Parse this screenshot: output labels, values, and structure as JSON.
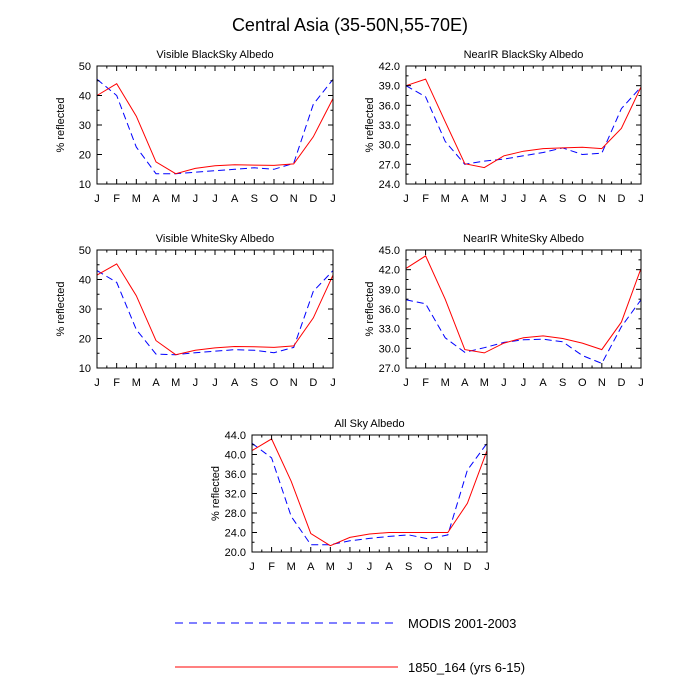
{
  "figure": {
    "title": "Central Asia (35-50N,55-70E)"
  },
  "legend": [
    {
      "label": "MODIS 2001-2003",
      "color": "#0000ff",
      "dashed": true
    },
    {
      "label": "1850_164 (yrs 6-15)",
      "color": "#ff0000",
      "dashed": false
    }
  ],
  "chart_data": [
    {
      "type": "line",
      "title": "Visible BlackSky Albedo",
      "ylabel": "% reflected",
      "xlabel": "",
      "categories": [
        "J",
        "F",
        "M",
        "A",
        "M",
        "J",
        "J",
        "A",
        "S",
        "O",
        "N",
        "D",
        "J"
      ],
      "ylim": [
        10,
        50
      ],
      "yticks": [
        "10",
        "20",
        "30",
        "40",
        "50"
      ],
      "grid": false,
      "series": [
        {
          "name": "MODIS 2001-2003",
          "color": "#0000ff",
          "dashed": true,
          "values": [
            45.5,
            40,
            22.5,
            13.5,
            13.5,
            14,
            14.5,
            15,
            15.5,
            15,
            17,
            37,
            45.5
          ]
        },
        {
          "name": "1850_164 (yrs 6-15)",
          "color": "#ff0000",
          "dashed": false,
          "values": [
            40,
            44,
            33,
            17.5,
            13.5,
            15.3,
            16.2,
            16.5,
            16.4,
            16.3,
            16.8,
            26,
            39
          ]
        }
      ]
    },
    {
      "type": "line",
      "title": "NearIR BlackSky Albedo",
      "ylabel": "% reflected",
      "xlabel": "",
      "categories": [
        "J",
        "F",
        "M",
        "A",
        "M",
        "J",
        "J",
        "A",
        "S",
        "O",
        "N",
        "D",
        "J"
      ],
      "ylim": [
        24,
        42
      ],
      "yticks": [
        "24.0",
        "27.0",
        "30.0",
        "33.0",
        "36.0",
        "39.0",
        "42.0"
      ],
      "grid": false,
      "series": [
        {
          "name": "MODIS 2001-2003",
          "color": "#0000ff",
          "dashed": true,
          "values": [
            39,
            37.3,
            30.5,
            27,
            27.5,
            27.8,
            28.3,
            28.8,
            29.5,
            28.5,
            28.7,
            35.5,
            38.8
          ]
        },
        {
          "name": "1850_164 (yrs 6-15)",
          "color": "#ff0000",
          "dashed": false,
          "values": [
            39,
            40,
            33.5,
            27.1,
            26.5,
            28.3,
            29,
            29.4,
            29.5,
            29.6,
            29.4,
            32.5,
            38.8
          ]
        }
      ]
    },
    {
      "type": "line",
      "title": "Visible WhiteSky Albedo",
      "ylabel": "% reflected",
      "xlabel": "",
      "categories": [
        "J",
        "F",
        "M",
        "A",
        "M",
        "J",
        "J",
        "A",
        "S",
        "O",
        "N",
        "D",
        "J"
      ],
      "ylim": [
        10,
        50
      ],
      "yticks": [
        "10",
        "20",
        "30",
        "40",
        "50"
      ],
      "grid": false,
      "series": [
        {
          "name": "MODIS 2001-2003",
          "color": "#0000ff",
          "dashed": true,
          "values": [
            43,
            39,
            23,
            14.7,
            14.5,
            15.2,
            15.7,
            16.2,
            16,
            15.2,
            17,
            36,
            43
          ]
        },
        {
          "name": "1850_164 (yrs 6-15)",
          "color": "#ff0000",
          "dashed": false,
          "values": [
            41.5,
            45.3,
            34.5,
            19.3,
            14.5,
            16,
            16.8,
            17.3,
            17.2,
            17,
            17.5,
            27,
            41.5
          ]
        }
      ]
    },
    {
      "type": "line",
      "title": "NearIR WhiteSky Albedo",
      "ylabel": "% reflected",
      "xlabel": "",
      "categories": [
        "J",
        "F",
        "M",
        "A",
        "M",
        "J",
        "J",
        "A",
        "S",
        "O",
        "N",
        "D",
        "J"
      ],
      "ylim": [
        27,
        45
      ],
      "yticks": [
        "27.0",
        "30.0",
        "33.0",
        "36.0",
        "39.0",
        "42.0",
        "45.0"
      ],
      "grid": false,
      "series": [
        {
          "name": "MODIS 2001-2003",
          "color": "#0000ff",
          "dashed": true,
          "values": [
            37.4,
            36.8,
            31.6,
            29.4,
            30.1,
            30.9,
            31.3,
            31.4,
            31,
            28.9,
            27.7,
            33.3,
            37.4
          ]
        },
        {
          "name": "1850_164 (yrs 6-15)",
          "color": "#ff0000",
          "dashed": false,
          "values": [
            42.2,
            44.1,
            37.5,
            29.8,
            29.3,
            30.8,
            31.6,
            31.9,
            31.5,
            30.8,
            29.8,
            34,
            42.2
          ]
        }
      ]
    },
    {
      "type": "line",
      "title": "All Sky Albedo",
      "ylabel": "% reflected",
      "xlabel": "",
      "categories": [
        "J",
        "F",
        "M",
        "A",
        "M",
        "J",
        "J",
        "A",
        "S",
        "O",
        "N",
        "D",
        "J"
      ],
      "ylim": [
        20,
        44
      ],
      "yticks": [
        "20.0",
        "24.0",
        "28.0",
        "32.0",
        "36.0",
        "40.0",
        "44.0"
      ],
      "grid": false,
      "series": [
        {
          "name": "MODIS 2001-2003",
          "color": "#0000ff",
          "dashed": true,
          "values": [
            42.3,
            39.3,
            27.3,
            21.5,
            21.5,
            22.3,
            22.8,
            23.2,
            23.5,
            22.7,
            23.5,
            36.8,
            42.3
          ]
        },
        {
          "name": "1850_164 (yrs 6-15)",
          "color": "#ff0000",
          "dashed": false,
          "values": [
            40.8,
            43.2,
            34.5,
            23.8,
            21.3,
            23,
            23.7,
            24,
            24,
            24,
            24,
            30,
            40.8
          ]
        }
      ]
    }
  ]
}
